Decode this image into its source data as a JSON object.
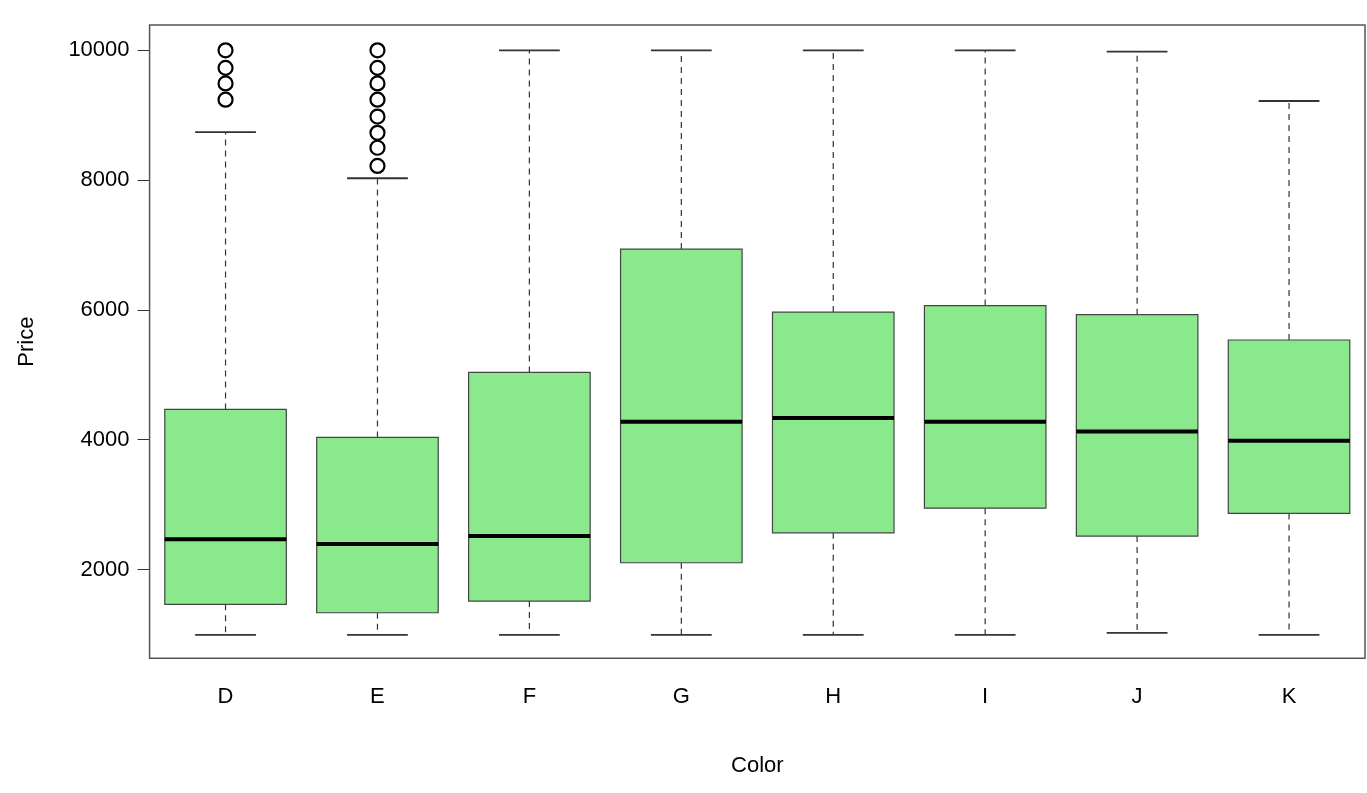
{
  "chart_data": {
    "type": "box",
    "xlabel": "Color",
    "ylabel": "Price",
    "categories": [
      "D",
      "E",
      "F",
      "G",
      "H",
      "I",
      "J",
      "K"
    ],
    "color": "#8ae98c",
    "ylim": [
      640,
      10390
    ],
    "yticks": [
      2000,
      4000,
      6000,
      8000,
      10000
    ],
    "boxes": [
      {
        "low": 1000,
        "q1": 1470,
        "median": 2470,
        "q3": 4470,
        "high": 8740,
        "outliers": [
          10000,
          9730,
          9490,
          9240
        ]
      },
      {
        "low": 1000,
        "q1": 1340,
        "median": 2400,
        "q3": 4040,
        "high": 8030,
        "outliers": [
          10000,
          9730,
          9490,
          9240,
          8980,
          8730,
          8500,
          8220
        ]
      },
      {
        "low": 1000,
        "q1": 1520,
        "median": 2520,
        "q3": 5040,
        "high": 10000
      },
      {
        "low": 1000,
        "q1": 2110,
        "median": 4280,
        "q3": 6940,
        "high": 10000
      },
      {
        "low": 1000,
        "q1": 2570,
        "median": 4340,
        "q3": 5970,
        "high": 10000
      },
      {
        "low": 1000,
        "q1": 2950,
        "median": 4280,
        "q3": 6070,
        "high": 10000
      },
      {
        "low": 1030,
        "q1": 2520,
        "median": 4130,
        "q3": 5930,
        "high": 9980
      },
      {
        "low": 1000,
        "q1": 2870,
        "median": 3990,
        "q3": 5540,
        "high": 9220
      }
    ]
  }
}
